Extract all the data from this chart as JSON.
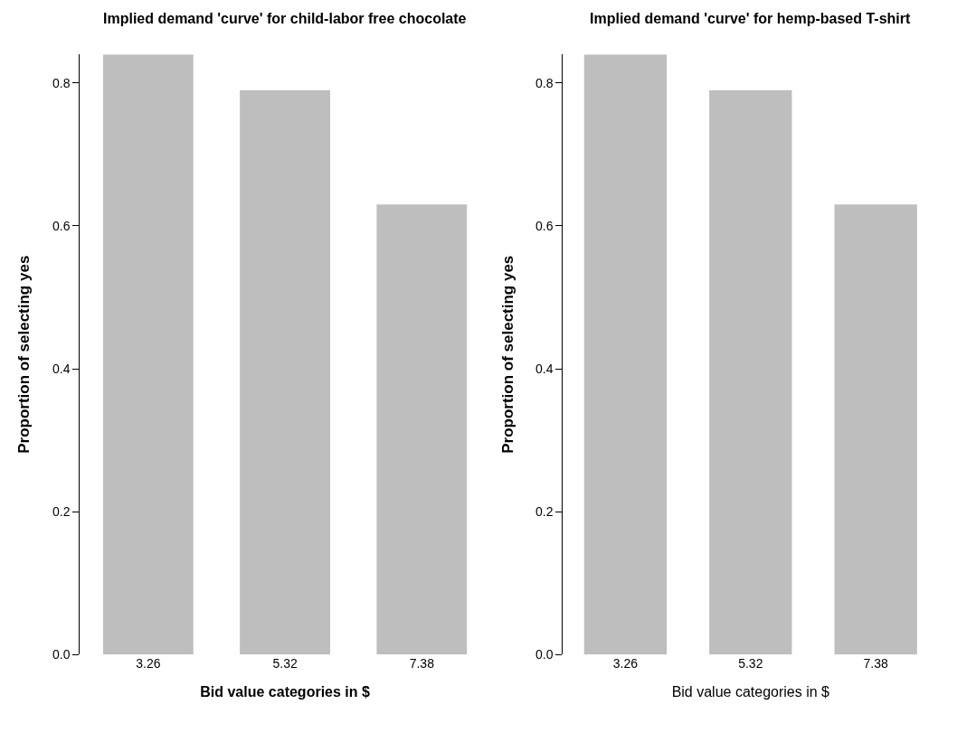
{
  "chart_data": [
    {
      "type": "bar",
      "title": "Implied demand 'curve' for child-labor free chocolate",
      "xlabel": "Bid value categories in $",
      "ylabel": "Proportion of selecting yes",
      "categories": [
        "3.26",
        "5.32",
        "7.38"
      ],
      "values": [
        0.84,
        0.79,
        0.63
      ],
      "color": "#bebebe",
      "ylim": [
        0,
        0.84
      ],
      "yticks": [
        {
          "value": 0,
          "label": "0.0"
        },
        0.2,
        0.4,
        0.6,
        0.8
      ]
    },
    {
      "type": "bar",
      "title": "Implied demand 'curve' for hemp-based T-shirt",
      "xlabel": "Bid value categories in $",
      "ylabel": "Proportion of selecting yes",
      "categories": [
        "3.26",
        "5.32",
        "7.38"
      ],
      "values": [
        0.84,
        0.79,
        0.63
      ],
      "color": "#bebebe",
      "ylim": [
        0,
        0.84
      ],
      "yticks": [
        {
          "value": 0,
          "label": "0.0"
        },
        0.2,
        0.4,
        0.6,
        0.8
      ]
    }
  ]
}
